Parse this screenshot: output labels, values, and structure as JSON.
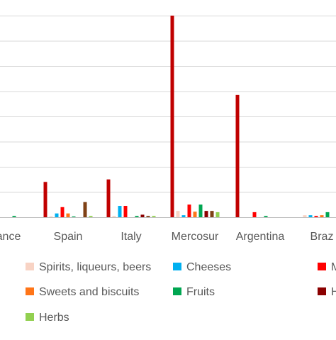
{
  "chart_data": {
    "type": "bar",
    "categories": [
      "France",
      "Spain",
      "Italy",
      "Mercosur",
      "Argentina",
      "Brazil"
    ],
    "category_labels_visible": [
      "ance",
      "Spain",
      "Italy",
      "Mercosur",
      "Argentina",
      "Braz"
    ],
    "ylim": [
      0,
      8
    ],
    "grid": true,
    "legend_placement": "bottom",
    "series": [
      {
        "name": "",
        "color": "#c00000",
        "values": [
          0.0,
          1.4,
          1.5,
          8.0,
          4.85,
          0.0
        ]
      },
      {
        "name": "Spirits, liqueurs, beers",
        "color": "#f8d3c4",
        "values": [
          0.03,
          0.03,
          0.05,
          0.25,
          0.0,
          0.08
        ]
      },
      {
        "name": "Cheeses",
        "color": "#00b0f0",
        "values": [
          0.0,
          0.15,
          0.45,
          0.08,
          0.0,
          0.08
        ]
      },
      {
        "name": "M",
        "color": "#ff0000",
        "values": [
          0.0,
          0.4,
          0.45,
          0.5,
          0.2,
          0.05
        ]
      },
      {
        "name": "Sweets and biscuits",
        "color": "#ff7518",
        "values": [
          0.0,
          0.15,
          0.0,
          0.22,
          0.0,
          0.08
        ]
      },
      {
        "name": "Fruits",
        "color": "#00a651",
        "values": [
          0.05,
          0.03,
          0.05,
          0.5,
          0.05,
          0.2
        ]
      },
      {
        "name": "H",
        "color": "#8b0000",
        "values": [
          0.0,
          0.0,
          0.1,
          0.25,
          0.0,
          0.0
        ]
      },
      {
        "name": "",
        "color": "#7f4116",
        "values": [
          0.0,
          0.6,
          0.05,
          0.25,
          0.0,
          0.0
        ]
      },
      {
        "name": "Herbs",
        "color": "#92d050",
        "values": [
          0.0,
          0.05,
          0.05,
          0.2,
          0.0,
          0.0
        ]
      }
    ],
    "legend": [
      {
        "label": "Spirits, liqueurs, beers",
        "color": "#f8d3c4"
      },
      {
        "label": "Cheeses",
        "color": "#00b0f0"
      },
      {
        "label": "M",
        "color": "#ff0000"
      },
      {
        "label": "Sweets and biscuits",
        "color": "#ff7518"
      },
      {
        "label": "Fruits",
        "color": "#00a651"
      },
      {
        "label": "H",
        "color": "#8b0000"
      },
      {
        "label": "Herbs",
        "color": "#92d050"
      }
    ]
  }
}
